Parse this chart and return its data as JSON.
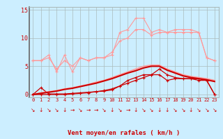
{
  "x": [
    0,
    1,
    2,
    3,
    4,
    5,
    6,
    7,
    8,
    9,
    10,
    11,
    12,
    13,
    14,
    15,
    16,
    17,
    18,
    19,
    20,
    21,
    22,
    23
  ],
  "line1": [
    6.0,
    6.0,
    7.0,
    4.0,
    7.0,
    4.0,
    6.5,
    6.0,
    6.5,
    6.5,
    7.0,
    11.0,
    11.5,
    13.5,
    13.5,
    11.0,
    11.5,
    11.0,
    11.5,
    11.5,
    11.5,
    11.0,
    6.5,
    6.0
  ],
  "line2": [
    6.0,
    6.0,
    6.5,
    4.5,
    6.0,
    5.0,
    6.5,
    6.0,
    6.5,
    6.5,
    7.5,
    9.5,
    10.0,
    11.5,
    11.5,
    10.5,
    11.0,
    11.0,
    11.0,
    11.0,
    11.0,
    11.0,
    6.5,
    6.0
  ],
  "line3": [
    0.0,
    1.2,
    0.1,
    0.1,
    0.1,
    0.2,
    0.3,
    0.4,
    0.5,
    0.6,
    0.8,
    1.5,
    2.5,
    3.0,
    3.5,
    3.5,
    3.5,
    2.5,
    2.8,
    2.8,
    2.8,
    2.8,
    2.5,
    0.0
  ],
  "line4": [
    0.0,
    0.0,
    0.0,
    0.0,
    0.0,
    0.1,
    0.2,
    0.3,
    0.5,
    0.7,
    1.0,
    1.5,
    2.0,
    2.5,
    3.0,
    3.5,
    4.5,
    3.5,
    3.0,
    2.8,
    2.8,
    2.5,
    2.5,
    0.0
  ],
  "line5_smooth": [
    0.0,
    0.3,
    0.5,
    0.7,
    1.0,
    1.2,
    1.5,
    1.8,
    2.2,
    2.5,
    3.0,
    3.5,
    4.0,
    4.5,
    5.0,
    5.2,
    5.2,
    4.5,
    4.0,
    3.5,
    3.2,
    3.0,
    2.8,
    2.5
  ],
  "line6_smooth": [
    0.0,
    0.2,
    0.4,
    0.6,
    0.9,
    1.1,
    1.4,
    1.7,
    2.0,
    2.4,
    2.8,
    3.3,
    3.8,
    4.2,
    4.7,
    5.0,
    5.0,
    4.3,
    3.8,
    3.3,
    3.0,
    2.8,
    2.6,
    2.3
  ],
  "wind_arrows": [
    "↘",
    "↓",
    "↘",
    "↘",
    "↓",
    "→",
    "↘",
    "→",
    "→",
    "↘",
    "↓",
    "↘",
    "→",
    "↓",
    "↘",
    "↘",
    "↓",
    "↓",
    "↘",
    "↘",
    "↓",
    "↘",
    "↘",
    "↘"
  ],
  "color_light": "#FF9999",
  "color_dark": "#CC0000",
  "bg_color": "#CCEEFF",
  "grid_color": "#AABBBB",
  "xlabel": "Vent moyen/en rafales ( km/h )",
  "yticks": [
    0,
    5,
    10,
    15
  ],
  "ylim": [
    0,
    15
  ],
  "xlim": [
    0,
    23
  ]
}
